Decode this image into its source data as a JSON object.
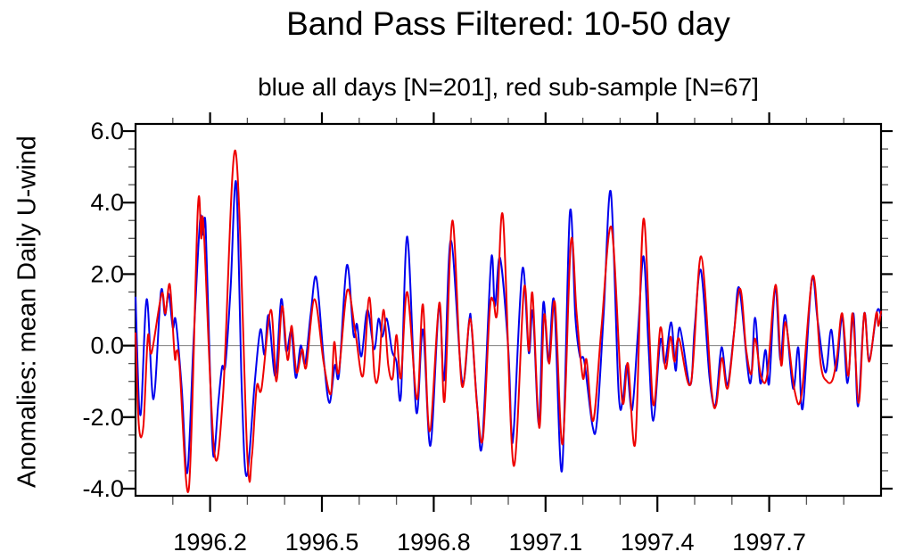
{
  "figure": {
    "title": "Band Pass Filtered: 10-50 day",
    "subtitle": "blue all days [N=201], red sub-sample [N=67]",
    "y_axis_title": "Anomalies: mean Daily U-wind",
    "background": "#ffffff"
  },
  "chart_data": {
    "type": "line",
    "title": "Band Pass Filtered: 10-50 day",
    "subtitle": "blue all days [N=201], red sub-sample [N=67]",
    "xlabel": "",
    "ylabel": "Anomalies: mean Daily U-wind",
    "x_range": [
      1996.0,
      1998.0
    ],
    "y_range": [
      -4.2,
      6.2
    ],
    "grid": false,
    "legend_position": "in-subtitle",
    "zero_line": true,
    "zero_line_color": "#808080",
    "axis_color": "#000000",
    "minor_tick_color": "#555555",
    "x_major_ticks": [
      1996.2,
      1996.5,
      1996.8,
      1997.1,
      1997.4,
      1997.7
    ],
    "x_major_labels": [
      "1996.2",
      "1996.5",
      "1996.8",
      "1997.1",
      "1997.4",
      "1997.7"
    ],
    "x_minor_step": 0.1,
    "y_major_ticks": [
      6.0,
      4.0,
      2.0,
      0.0,
      -2.0,
      -4.0
    ],
    "y_major_labels": [
      "6.0",
      "4.0",
      "2.0",
      "0.0",
      "-2.0",
      "-4.0"
    ],
    "y_minor_step": 0.5,
    "series": [
      {
        "name": "all days",
        "n": 201,
        "color": "#0000ee",
        "points": [
          [
            1996.0,
            1.35
          ],
          [
            1996.013,
            -1.95
          ],
          [
            1996.03,
            1.3
          ],
          [
            1996.048,
            -1.5
          ],
          [
            1996.068,
            1.5
          ],
          [
            1996.079,
            0.85
          ],
          [
            1996.089,
            1.45
          ],
          [
            1996.1,
            0.5
          ],
          [
            1996.108,
            0.7
          ],
          [
            1996.124,
            -1.2
          ],
          [
            1996.139,
            -3.55
          ],
          [
            1996.156,
            0.2
          ],
          [
            1996.173,
            3.5
          ],
          [
            1996.181,
            3.1
          ],
          [
            1996.188,
            3.35
          ],
          [
            1996.2,
            -0.8
          ],
          [
            1996.209,
            -3.1
          ],
          [
            1996.222,
            -1.6
          ],
          [
            1996.232,
            -0.6
          ],
          [
            1996.241,
            -0.55
          ],
          [
            1996.255,
            1.6
          ],
          [
            1996.27,
            4.55
          ],
          [
            1996.285,
            -1.2
          ],
          [
            1996.298,
            -3.65
          ],
          [
            1996.32,
            -1.0
          ],
          [
            1996.335,
            0.45
          ],
          [
            1996.346,
            -0.25
          ],
          [
            1996.357,
            0.85
          ],
          [
            1996.375,
            -0.85
          ],
          [
            1996.391,
            1.3
          ],
          [
            1996.404,
            -0.15
          ],
          [
            1996.418,
            0.4
          ],
          [
            1996.43,
            -0.9
          ],
          [
            1996.443,
            0.0
          ],
          [
            1996.455,
            -0.5
          ],
          [
            1996.47,
            0.9
          ],
          [
            1996.485,
            1.9
          ],
          [
            1996.505,
            -0.4
          ],
          [
            1996.52,
            -1.6
          ],
          [
            1996.535,
            -0.55
          ],
          [
            1996.546,
            -0.8
          ],
          [
            1996.567,
            2.25
          ],
          [
            1996.585,
            0.3
          ],
          [
            1996.594,
            0.6
          ],
          [
            1996.606,
            -0.3
          ],
          [
            1996.622,
            1.0
          ],
          [
            1996.64,
            -0.1
          ],
          [
            1996.652,
            0.75
          ],
          [
            1996.662,
            0.25
          ],
          [
            1996.674,
            0.75
          ],
          [
            1996.688,
            -0.15
          ],
          [
            1996.7,
            -0.45
          ],
          [
            1996.712,
            -1.4
          ],
          [
            1996.729,
            3.05
          ],
          [
            1996.753,
            -1.85
          ],
          [
            1996.771,
            0.45
          ],
          [
            1996.791,
            -2.8
          ],
          [
            1996.814,
            1.1
          ],
          [
            1996.828,
            -0.95
          ],
          [
            1996.846,
            2.95
          ],
          [
            1996.876,
            -1.0
          ],
          [
            1996.895,
            0.7
          ],
          [
            1996.901,
            0.6
          ],
          [
            1996.916,
            -1.6
          ],
          [
            1996.93,
            -2.75
          ],
          [
            1996.954,
            2.4
          ],
          [
            1996.964,
            1.1
          ],
          [
            1996.978,
            2.45
          ],
          [
            1997.0,
            -0.1
          ],
          [
            1997.008,
            -2.3
          ],
          [
            1997.015,
            -2.3
          ],
          [
            1997.038,
            2.15
          ],
          [
            1997.055,
            -0.2
          ],
          [
            1997.066,
            0.95
          ],
          [
            1997.082,
            -2.2
          ],
          [
            1997.094,
            1.2
          ],
          [
            1997.108,
            -0.45
          ],
          [
            1997.123,
            1.25
          ],
          [
            1997.144,
            -3.5
          ],
          [
            1997.165,
            3.7
          ],
          [
            1997.18,
            0.8
          ],
          [
            1997.192,
            -0.3
          ],
          [
            1997.204,
            -0.45
          ],
          [
            1997.226,
            -2.25
          ],
          [
            1997.238,
            -2.1
          ],
          [
            1997.256,
            0.9
          ],
          [
            1997.275,
            4.3
          ],
          [
            1997.296,
            -1.3
          ],
          [
            1997.308,
            -1.45
          ],
          [
            1997.318,
            -0.55
          ],
          [
            1997.332,
            -1.8
          ],
          [
            1997.348,
            0.4
          ],
          [
            1997.363,
            2.5
          ],
          [
            1997.376,
            0.0
          ],
          [
            1997.389,
            -2.1
          ],
          [
            1997.408,
            0.15
          ],
          [
            1997.42,
            -0.5
          ],
          [
            1997.437,
            0.65
          ],
          [
            1997.449,
            -0.7
          ],
          [
            1997.46,
            0.5
          ],
          [
            1997.488,
            -1.1
          ],
          [
            1997.5,
            0.5
          ],
          [
            1997.517,
            2.1
          ],
          [
            1997.54,
            -0.9
          ],
          [
            1997.556,
            -1.65
          ],
          [
            1997.572,
            -0.05
          ],
          [
            1997.588,
            -1.1
          ],
          [
            1997.606,
            0.4
          ],
          [
            1997.62,
            1.6
          ],
          [
            1997.648,
            -1.05
          ],
          [
            1997.662,
            0.78
          ],
          [
            1997.676,
            -1.05
          ],
          [
            1997.69,
            -0.12
          ],
          [
            1997.7,
            -1.05
          ],
          [
            1997.716,
            1.65
          ],
          [
            1997.73,
            -0.4
          ],
          [
            1997.743,
            0.85
          ],
          [
            1997.764,
            -1.2
          ],
          [
            1997.778,
            -0.05
          ],
          [
            1997.79,
            -1.75
          ],
          [
            1997.814,
            1.85
          ],
          [
            1997.83,
            0.7
          ],
          [
            1997.851,
            -0.75
          ],
          [
            1997.866,
            0.45
          ],
          [
            1997.88,
            -0.7
          ],
          [
            1997.896,
            0.8
          ],
          [
            1997.91,
            -1.05
          ],
          [
            1997.926,
            0.9
          ],
          [
            1997.938,
            -1.7
          ],
          [
            1997.955,
            0.9
          ],
          [
            1997.968,
            -0.4
          ],
          [
            1997.989,
            0.95
          ],
          [
            1998.0,
            0.85
          ]
        ]
      },
      {
        "name": "sub-sample",
        "n": 67,
        "color": "#ee0000",
        "points": [
          [
            1996.0,
            0.35
          ],
          [
            1996.009,
            -2.25
          ],
          [
            1996.021,
            -2.25
          ],
          [
            1996.033,
            0.25
          ],
          [
            1996.043,
            -0.2
          ],
          [
            1996.07,
            1.45
          ],
          [
            1996.08,
            0.9
          ],
          [
            1996.092,
            1.7
          ],
          [
            1996.105,
            -0.3
          ],
          [
            1996.11,
            -0.15
          ],
          [
            1996.118,
            -0.55
          ],
          [
            1996.143,
            -4.0
          ],
          [
            1996.167,
            3.8
          ],
          [
            1996.176,
            3.0
          ],
          [
            1996.183,
            3.25
          ],
          [
            1996.211,
            -2.95
          ],
          [
            1996.235,
            -1.35
          ],
          [
            1996.268,
            5.45
          ],
          [
            1996.3,
            -3.1
          ],
          [
            1996.312,
            -3.1
          ],
          [
            1996.325,
            -1.15
          ],
          [
            1996.338,
            -1.2
          ],
          [
            1996.363,
            1.0
          ],
          [
            1996.378,
            -1.0
          ],
          [
            1996.393,
            1.1
          ],
          [
            1996.408,
            -0.4
          ],
          [
            1996.419,
            0.55
          ],
          [
            1996.432,
            -0.75
          ],
          [
            1996.447,
            -0.1
          ],
          [
            1996.458,
            -0.6
          ],
          [
            1996.48,
            1.3
          ],
          [
            1996.505,
            -0.5
          ],
          [
            1996.524,
            -1.35
          ],
          [
            1996.533,
            0.1
          ],
          [
            1996.545,
            -0.75
          ],
          [
            1996.568,
            1.55
          ],
          [
            1996.59,
            0.35
          ],
          [
            1996.61,
            -0.85
          ],
          [
            1996.627,
            1.35
          ],
          [
            1996.641,
            -0.8
          ],
          [
            1996.652,
            -0.8
          ],
          [
            1996.665,
            1.0
          ],
          [
            1996.678,
            -0.55
          ],
          [
            1996.69,
            -0.9
          ],
          [
            1996.7,
            0.3
          ],
          [
            1996.712,
            -0.9
          ],
          [
            1996.729,
            1.5
          ],
          [
            1996.755,
            -1.5
          ],
          [
            1996.771,
            1.15
          ],
          [
            1996.789,
            -2.4
          ],
          [
            1996.815,
            1.2
          ],
          [
            1996.829,
            -1.55
          ],
          [
            1996.85,
            3.5
          ],
          [
            1996.875,
            -1.1
          ],
          [
            1996.898,
            0.75
          ],
          [
            1996.916,
            -1.65
          ],
          [
            1996.932,
            -2.6
          ],
          [
            1996.95,
            0.95
          ],
          [
            1996.96,
            1.25
          ],
          [
            1996.97,
            0.9
          ],
          [
            1996.986,
            3.6
          ],
          [
            1997.014,
            -3.35
          ],
          [
            1997.042,
            1.6
          ],
          [
            1997.055,
            -0.15
          ],
          [
            1997.065,
            1.45
          ],
          [
            1997.083,
            -2.3
          ],
          [
            1997.096,
            0.85
          ],
          [
            1997.11,
            -0.5
          ],
          [
            1997.125,
            1.2
          ],
          [
            1997.146,
            -2.75
          ],
          [
            1997.168,
            2.9
          ],
          [
            1997.183,
            0.95
          ],
          [
            1997.2,
            -0.9
          ],
          [
            1997.21,
            -0.4
          ],
          [
            1997.228,
            -2.1
          ],
          [
            1997.25,
            0.5
          ],
          [
            1997.277,
            3.3
          ],
          [
            1997.305,
            -1.5
          ],
          [
            1997.321,
            -0.5
          ],
          [
            1997.341,
            -2.7
          ],
          [
            1997.363,
            3.55
          ],
          [
            1997.388,
            -1.6
          ],
          [
            1997.408,
            0.5
          ],
          [
            1997.422,
            -0.65
          ],
          [
            1997.435,
            0.25
          ],
          [
            1997.446,
            -0.45
          ],
          [
            1997.458,
            0.2
          ],
          [
            1997.49,
            -1.05
          ],
          [
            1997.517,
            2.5
          ],
          [
            1997.545,
            -1.2
          ],
          [
            1997.558,
            -1.65
          ],
          [
            1997.573,
            -0.35
          ],
          [
            1997.59,
            -1.15
          ],
          [
            1997.62,
            1.58
          ],
          [
            1997.638,
            -0.1
          ],
          [
            1997.652,
            -0.8
          ],
          [
            1997.662,
            0.2
          ],
          [
            1997.678,
            -0.85
          ],
          [
            1997.695,
            -0.8
          ],
          [
            1997.717,
            1.7
          ],
          [
            1997.732,
            -0.55
          ],
          [
            1997.744,
            0.65
          ],
          [
            1997.768,
            -1.25
          ],
          [
            1997.787,
            -1.35
          ],
          [
            1997.817,
            1.95
          ],
          [
            1997.838,
            -0.5
          ],
          [
            1997.855,
            -1.0
          ],
          [
            1997.87,
            -0.95
          ],
          [
            1997.882,
            -0.3
          ],
          [
            1997.896,
            0.9
          ],
          [
            1997.912,
            -0.85
          ],
          [
            1997.924,
            0.9
          ],
          [
            1997.94,
            -1.6
          ],
          [
            1997.955,
            0.9
          ],
          [
            1997.968,
            -0.45
          ],
          [
            1997.987,
            0.9
          ],
          [
            1997.993,
            0.55
          ],
          [
            1998.0,
            0.95
          ]
        ]
      }
    ]
  }
}
